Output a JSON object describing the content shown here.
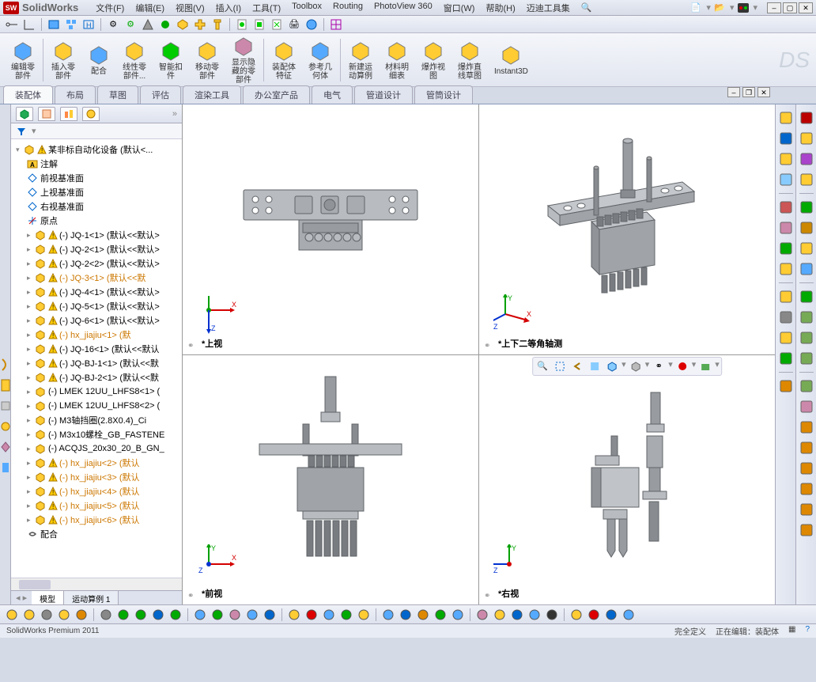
{
  "app": {
    "name": "SolidWorks",
    "edition": "SolidWorks Premium 2011"
  },
  "menus": [
    "文件(F)",
    "编辑(E)",
    "视图(V)",
    "插入(I)",
    "工具(T)",
    "Toolbox",
    "Routing",
    "PhotoView 360",
    "窗口(W)",
    "帮助(H)",
    "迈迪工具集"
  ],
  "ribbon": [
    {
      "label": "编辑零\n部件"
    },
    {
      "label": "插入零\n部件"
    },
    {
      "label": "配合"
    },
    {
      "label": "线性零\n部件..."
    },
    {
      "label": "智能扣\n件"
    },
    {
      "label": "移动零\n部件"
    },
    {
      "label": "显示隐\n藏的零\n部件"
    },
    {
      "label": "装配体\n特征"
    },
    {
      "label": "参考几\n何体"
    },
    {
      "label": "新建运\n动算例"
    },
    {
      "label": "材料明\n细表"
    },
    {
      "label": "爆炸视\n图"
    },
    {
      "label": "爆炸直\n线草图"
    },
    {
      "label": "Instant3D"
    }
  ],
  "tabs": [
    "装配体",
    "布局",
    "草图",
    "评估",
    "渲染工具",
    "办公室产品",
    "电气",
    "管道设计",
    "管筒设计"
  ],
  "active_tab": 0,
  "tree": {
    "root": "某非标自动化设备  (默认<...",
    "annotations": "注解",
    "planes": [
      "前视基准面",
      "上视基准面",
      "右视基准面"
    ],
    "origin": "原点",
    "items": [
      {
        "t": "(-) JQ-1<1> (默认<<默认>",
        "w": true
      },
      {
        "t": "(-) JQ-2<1> (默认<<默认>",
        "w": true
      },
      {
        "t": "(-) JQ-2<2> (默认<<默认>",
        "w": true
      },
      {
        "t": "(-) JQ-3<1> (默认<<默",
        "w": true,
        "orange": true
      },
      {
        "t": "(-) JQ-4<1> (默认<<默认>",
        "w": true
      },
      {
        "t": "(-) JQ-5<1> (默认<<默认>",
        "w": true
      },
      {
        "t": "(-) JQ-6<1> (默认<<默认>",
        "w": true
      },
      {
        "t": "(-) hx_jiajiu<1> (默",
        "w": true,
        "orange": true
      },
      {
        "t": "(-) JQ-16<1> (默认<<默认",
        "w": true
      },
      {
        "t": "(-) JQ-BJ-1<1> (默认<<默",
        "w": true
      },
      {
        "t": "(-) JQ-BJ-2<1> (默认<<默",
        "w": true
      },
      {
        "t": "(-) LMEK 12UU_LHFS8<1> (",
        "w": false
      },
      {
        "t": "(-) LMEK 12UU_LHFS8<2> (",
        "w": false
      },
      {
        "t": "(-) M3轴挡圈(2.8X0.4)_Ci",
        "w": false
      },
      {
        "t": "(-) M3x10螺栓_GB_FASTENE",
        "w": false
      },
      {
        "t": "(-) ACQJS_20x30_20_B_GN_",
        "w": false
      },
      {
        "t": "(-) hx_jiajiu<2> (默认",
        "w": true,
        "orange": true
      },
      {
        "t": "(-) hx_jiajiu<3> (默认",
        "w": true,
        "orange": true
      },
      {
        "t": "(-) hx_jiajiu<4> (默认",
        "w": true,
        "orange": true
      },
      {
        "t": "(-) hx_jiajiu<5> (默认",
        "w": true,
        "orange": true
      },
      {
        "t": "(-) hx_jiajiu<6> (默认",
        "w": true,
        "orange": true
      }
    ],
    "mates": "配合",
    "bottom_tabs": [
      "模型",
      "运动算例 1"
    ]
  },
  "viewports": [
    {
      "label": "*上视",
      "triad": [
        "X",
        "Y",
        "Z"
      ]
    },
    {
      "label": "*上下二等角轴测",
      "triad": [
        "X",
        "Y",
        "Z"
      ]
    },
    {
      "label": "*前视",
      "triad": [
        "X",
        "Y",
        "Z"
      ]
    },
    {
      "label": "*右视",
      "triad": [
        "X",
        "Y",
        "Z"
      ]
    }
  ],
  "status": {
    "left": "SolidWorks Premium 2011",
    "def": "完全定义",
    "edit": "正在编辑：装配体"
  },
  "colors": {
    "axis_x": "#d40000",
    "axis_y": "#00a000",
    "axis_z": "#0030d0",
    "part_fill": "#b8bcc0",
    "part_stroke": "#606468",
    "part_dark": "#888c90"
  }
}
